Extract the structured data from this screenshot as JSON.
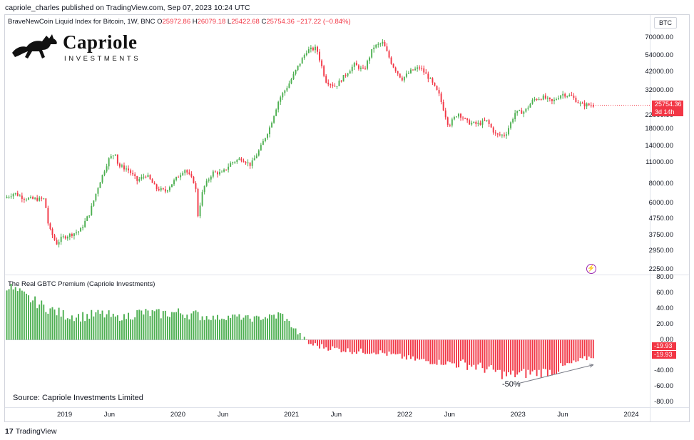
{
  "header": {
    "published": "capriole_charles published on TradingView.com, Sep 07, 2023 10:24 UTC"
  },
  "legend": {
    "symbol": "BraveNewCoin Liquid Index for Bitcoin, 1W, BNC",
    "o_label": "O",
    "o_value": "25972.86",
    "h_label": "H",
    "h_value": "26079.18",
    "l_label": "L",
    "l_value": "25422.68",
    "c_label": "C",
    "c_value": "25754.36",
    "change": "−217.22 (−0.84%)"
  },
  "logo": {
    "name": "Capriole",
    "sub": "INVESTMENTS",
    "horse_icon": "horse-icon"
  },
  "currency_badge": "BTC",
  "price_tag": {
    "price": "25754.36",
    "countdown": "3d 14h"
  },
  "indicator": {
    "title": "The Real GBTC Premium (Capriole Investments)",
    "value_1": "-19.93",
    "value_2": "-19.93",
    "annotation": "-50%"
  },
  "source_note": "Source: Capriole Investments Limited",
  "footer": {
    "brand_mark": "17",
    "brand_name": "TradingView"
  },
  "colors": {
    "up": "#4caf50",
    "down": "#f23645",
    "premium_up": "#4caf50",
    "premium_down": "#f23645",
    "accent": "#9c27b0"
  },
  "chart_data": [
    {
      "type": "candlestick",
      "title": "BraveNewCoin Liquid Index for Bitcoin, 1W, BNC",
      "scale": "log",
      "ylim": [
        2000,
        80000
      ],
      "y_ticks": [
        70000,
        54000,
        42000,
        32000,
        22000,
        18000,
        14000,
        11000,
        8000,
        6000,
        4750,
        3750,
        2950,
        2250
      ],
      "x_ticks": [
        "2019",
        "Jun",
        "2020",
        "Jun",
        "2021",
        "Jun",
        "2022",
        "Jun",
        "2023",
        "Jun",
        "2024"
      ],
      "series": [
        {
          "name": "BTC",
          "points": [
            [
              "2018-07",
              6500
            ],
            [
              "2018-08",
              7000
            ],
            [
              "2018-09",
              6500
            ],
            [
              "2018-10",
              6400
            ],
            [
              "2018-11-07",
              6400
            ],
            [
              "2018-11-20",
              4200
            ],
            [
              "2018-12-15",
              3300
            ],
            [
              "2019-01",
              3600
            ],
            [
              "2019-02",
              3800
            ],
            [
              "2019-03",
              4000
            ],
            [
              "2019-04",
              5200
            ],
            [
              "2019-05",
              8000
            ],
            [
              "2019-06",
              11500
            ],
            [
              "2019-06-26",
              12900
            ],
            [
              "2019-07",
              10500
            ],
            [
              "2019-08",
              10000
            ],
            [
              "2019-09",
              8400
            ],
            [
              "2019-10",
              9200
            ],
            [
              "2019-11",
              7500
            ],
            [
              "2019-12",
              7200
            ],
            [
              "2020-01",
              8500
            ],
            [
              "2020-02",
              10000
            ],
            [
              "2020-03-07",
              8000
            ],
            [
              "2020-03-13",
              4800
            ],
            [
              "2020-04",
              7500
            ],
            [
              "2020-05",
              9500
            ],
            [
              "2020-06",
              9400
            ],
            [
              "2020-07",
              11000
            ],
            [
              "2020-08",
              11700
            ],
            [
              "2020-09",
              10600
            ],
            [
              "2020-10",
              13500
            ],
            [
              "2020-11",
              18500
            ],
            [
              "2020-12",
              28000
            ],
            [
              "2021-01",
              35000
            ],
            [
              "2021-02",
              46000
            ],
            [
              "2021-03",
              58000
            ],
            [
              "2021-04",
              60000
            ],
            [
              "2021-05",
              37000
            ],
            [
              "2021-06",
              34000
            ],
            [
              "2021-07",
              40000
            ],
            [
              "2021-08",
              47000
            ],
            [
              "2021-09",
              43000
            ],
            [
              "2021-10",
              61000
            ],
            [
              "2021-11",
              65000
            ],
            [
              "2021-12",
              47000
            ],
            [
              "2022-01",
              38000
            ],
            [
              "2022-02",
              43000
            ],
            [
              "2022-03",
              45000
            ],
            [
              "2022-04",
              38000
            ],
            [
              "2022-05",
              30000
            ],
            [
              "2022-06",
              19000
            ],
            [
              "2022-07",
              23000
            ],
            [
              "2022-08",
              20000
            ],
            [
              "2022-09",
              19400
            ],
            [
              "2022-10",
              20500
            ],
            [
              "2022-11",
              16500
            ],
            [
              "2022-12",
              16600
            ],
            [
              "2023-01",
              23000
            ],
            [
              "2023-02",
              23500
            ],
            [
              "2023-03",
              28000
            ],
            [
              "2023-04",
              29000
            ],
            [
              "2023-05",
              27000
            ],
            [
              "2023-06",
              30500
            ],
            [
              "2023-07",
              29500
            ],
            [
              "2023-08",
              26000
            ],
            [
              "2023-09-07",
              25754.36
            ]
          ]
        }
      ]
    },
    {
      "type": "bar",
      "title": "The Real GBTC Premium (Capriole Investments)",
      "ylim": [
        -80,
        80
      ],
      "y_ticks": [
        80,
        60,
        40,
        20,
        0,
        -20,
        -40,
        -60,
        -80
      ],
      "series": [
        {
          "name": "GBTC Premium",
          "points": [
            [
              "2018-07",
              70
            ],
            [
              "2018-09",
              55
            ],
            [
              "2018-11",
              42
            ],
            [
              "2019-01",
              32
            ],
            [
              "2019-03",
              30
            ],
            [
              "2019-05",
              33
            ],
            [
              "2019-07",
              28
            ],
            [
              "2019-09",
              35
            ],
            [
              "2019-11",
              33
            ],
            [
              "2020-01",
              35
            ],
            [
              "2020-03",
              32
            ],
            [
              "2020-05",
              28
            ],
            [
              "2020-07",
              30
            ],
            [
              "2020-09",
              27
            ],
            [
              "2020-11",
              30
            ],
            [
              "2020-12",
              32
            ],
            [
              "2021-01",
              20
            ],
            [
              "2021-02",
              5
            ],
            [
              "2021-03",
              -5
            ],
            [
              "2021-04",
              -8
            ],
            [
              "2021-06",
              -12
            ],
            [
              "2021-08",
              -15
            ],
            [
              "2021-10",
              -15
            ],
            [
              "2021-12",
              -20
            ],
            [
              "2022-02",
              -25
            ],
            [
              "2022-04",
              -28
            ],
            [
              "2022-06",
              -30
            ],
            [
              "2022-08",
              -32
            ],
            [
              "2022-10",
              -38
            ],
            [
              "2022-12",
              -46
            ],
            [
              "2023-01",
              -44
            ],
            [
              "2023-03",
              -42
            ],
            [
              "2023-05",
              -40
            ],
            [
              "2023-07",
              -30
            ],
            [
              "2023-09-07",
              -19.93
            ]
          ]
        }
      ]
    }
  ]
}
